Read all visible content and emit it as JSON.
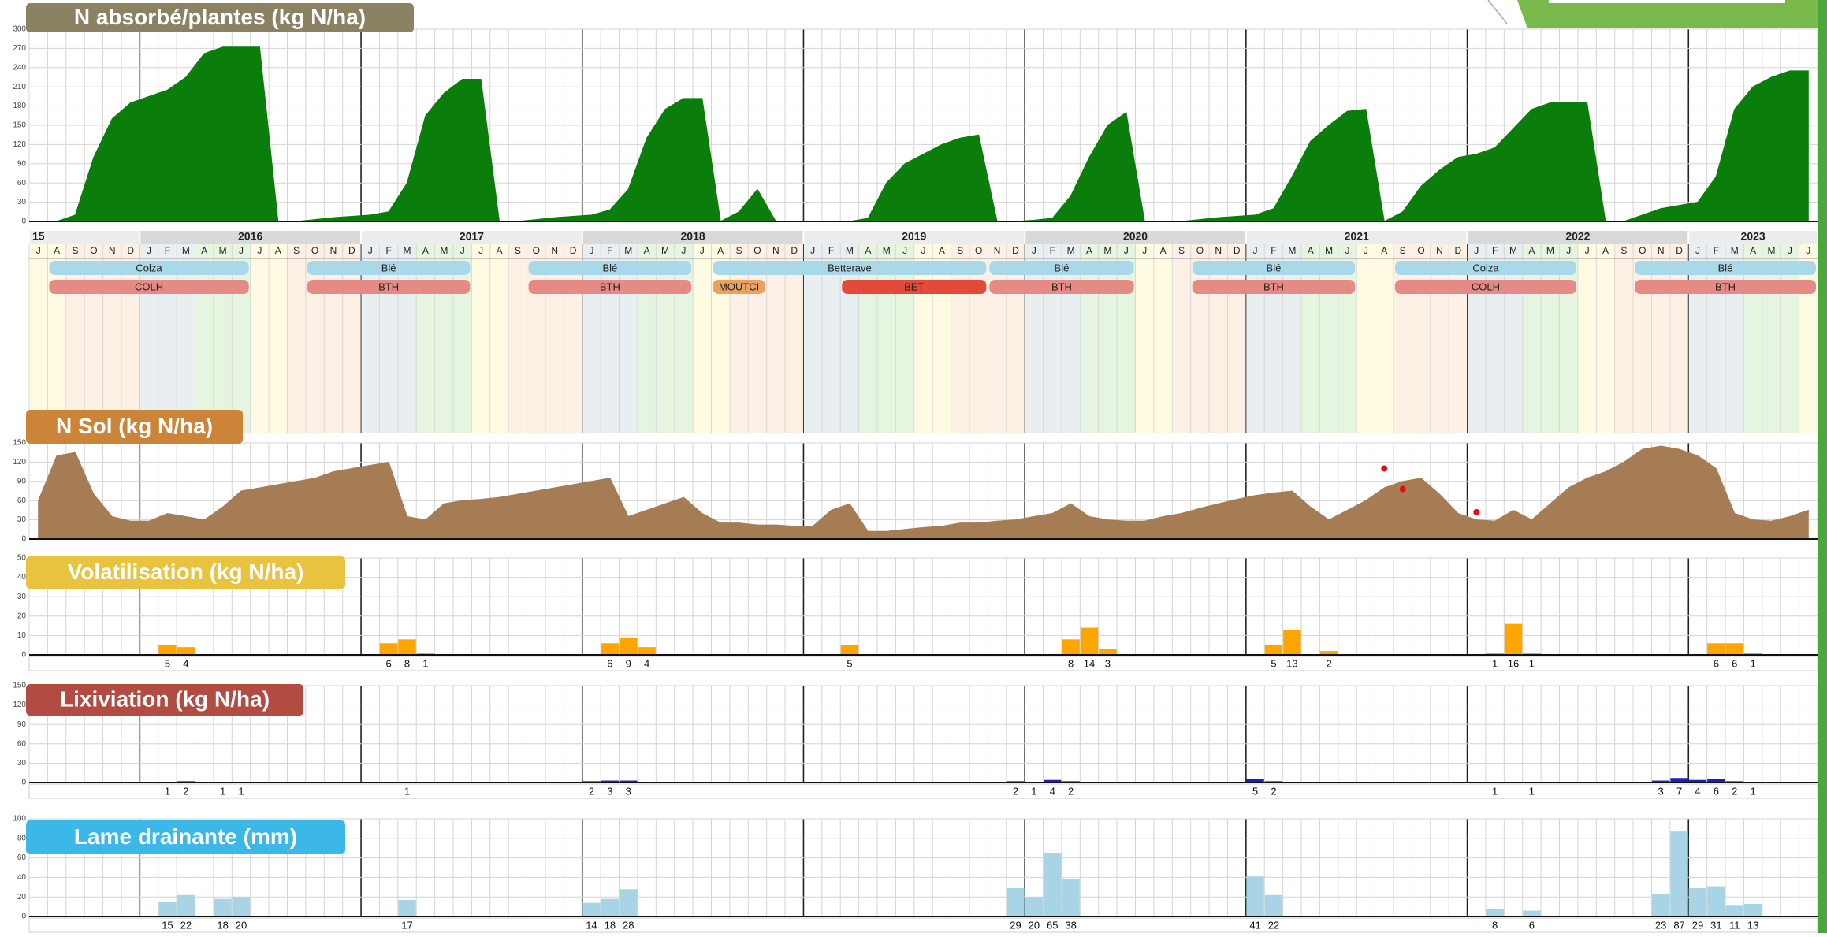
{
  "chart_data": [
    {
      "type": "area",
      "title": "N absorbé/plantes (kg N/ha)",
      "title_color": "#8a8262",
      "color": "#0a7d0a",
      "x": [
        "2015-07",
        "2015-08",
        "2015-09",
        "2015-10",
        "2015-11",
        "2015-12",
        "2016-01",
        "2016-02",
        "2016-03",
        "2016-04",
        "2016-05",
        "2016-06",
        "2016-07",
        "2016-08",
        "2016-09",
        "2016-10",
        "2016-11",
        "2016-12",
        "2017-01",
        "2017-02",
        "2017-03",
        "2017-04",
        "2017-05",
        "2017-06",
        "2017-07",
        "2017-08",
        "2017-09",
        "2017-10",
        "2017-11",
        "2017-12",
        "2018-01",
        "2018-02",
        "2018-03",
        "2018-04",
        "2018-05",
        "2018-06",
        "2018-07",
        "2018-08",
        "2018-09",
        "2018-10",
        "2018-11",
        "2018-12",
        "2019-01",
        "2019-02",
        "2019-03",
        "2019-04",
        "2019-05",
        "2019-06",
        "2019-07",
        "2019-08",
        "2019-09",
        "2019-10",
        "2019-11",
        "2019-12",
        "2020-01",
        "2020-02",
        "2020-03",
        "2020-04",
        "2020-05",
        "2020-06",
        "2020-07",
        "2020-08",
        "2020-09",
        "2020-10",
        "2020-11",
        "2020-12",
        "2021-01",
        "2021-02",
        "2021-03",
        "2021-04",
        "2021-05",
        "2021-06",
        "2021-07",
        "2021-08",
        "2021-09",
        "2021-10",
        "2021-11",
        "2021-12",
        "2022-01",
        "2022-02",
        "2022-03",
        "2022-04",
        "2022-05",
        "2022-06",
        "2022-07",
        "2022-08",
        "2022-09",
        "2022-10",
        "2022-11",
        "2022-12",
        "2023-01",
        "2023-02",
        "2023-03",
        "2023-04",
        "2023-05",
        "2023-06",
        "2023-07"
      ],
      "values": [
        0,
        0,
        10,
        100,
        160,
        185,
        195,
        205,
        225,
        262,
        272,
        272,
        272,
        0,
        0,
        3,
        6,
        8,
        10,
        15,
        60,
        165,
        200,
        222,
        222,
        0,
        0,
        3,
        6,
        8,
        10,
        18,
        50,
        130,
        175,
        192,
        192,
        0,
        15,
        50,
        0,
        0,
        0,
        0,
        0,
        5,
        60,
        90,
        105,
        120,
        130,
        135,
        0,
        0,
        2,
        5,
        40,
        100,
        150,
        170,
        0,
        0,
        0,
        3,
        6,
        8,
        10,
        20,
        70,
        125,
        150,
        172,
        175,
        0,
        15,
        55,
        80,
        100,
        105,
        115,
        145,
        175,
        185,
        185,
        185,
        0,
        0,
        10,
        20,
        25,
        30,
        70,
        175,
        210,
        225,
        235,
        235
      ],
      "ylim": [
        0,
        300
      ],
      "yticks": [
        0,
        30,
        60,
        90,
        120,
        150,
        180,
        210,
        240,
        270,
        300
      ],
      "grid": true
    },
    {
      "type": "timeline",
      "years": [
        "15",
        "2016",
        "2017",
        "2018",
        "2019",
        "2020",
        "2021",
        "2022",
        "2023"
      ],
      "months": [
        "J",
        "A",
        "S",
        "O",
        "N",
        "D",
        "J",
        "F",
        "M",
        "A",
        "M",
        "J",
        "J",
        "A",
        "S",
        "O",
        "N",
        "D",
        "J",
        "F",
        "M",
        "A",
        "M",
        "J",
        "J",
        "A",
        "S",
        "O",
        "N",
        "D",
        "J",
        "F",
        "M",
        "A",
        "M",
        "J",
        "J",
        "A",
        "S",
        "O",
        "N",
        "D",
        "J",
        "F",
        "M",
        "A",
        "M",
        "J",
        "J",
        "A",
        "S",
        "O",
        "N",
        "D",
        "J",
        "F",
        "M",
        "A",
        "M",
        "J",
        "J",
        "A",
        "S",
        "O",
        "N",
        "D",
        "J",
        "F",
        "M",
        "A",
        "M",
        "J",
        "J",
        "A",
        "S",
        "O",
        "N",
        "D",
        "J",
        "F",
        "M",
        "A",
        "M",
        "J",
        "J",
        "A",
        "S",
        "O",
        "N",
        "D",
        "J",
        "F",
        "M",
        "A",
        "M",
        "J",
        "J"
      ],
      "crops": [
        {
          "name": "Colza",
          "start": "2015-08",
          "end": "2016-06"
        },
        {
          "name": "Blé",
          "start": "2016-10",
          "end": "2017-06"
        },
        {
          "name": "Blé",
          "start": "2017-10",
          "end": "2018-06"
        },
        {
          "name": "Betterave",
          "start": "2018-08",
          "end": "2019-10"
        },
        {
          "name": "Blé",
          "start": "2019-11",
          "end": "2020-06"
        },
        {
          "name": "Blé",
          "start": "2020-10",
          "end": "2021-06"
        },
        {
          "name": "Colza",
          "start": "2021-09",
          "end": "2022-06"
        },
        {
          "name": "Blé",
          "start": "2022-10",
          "end": "2023-07"
        }
      ],
      "crop_color": "#a9d9e8",
      "codes": [
        {
          "name": "COLH",
          "start": "2015-08",
          "end": "2016-06",
          "color": "#e58a84"
        },
        {
          "name": "BTH",
          "start": "2016-10",
          "end": "2017-06",
          "color": "#e58a84"
        },
        {
          "name": "BTH",
          "start": "2017-10",
          "end": "2018-06",
          "color": "#e58a84"
        },
        {
          "name": "MOUTCI",
          "start": "2018-08",
          "end": "2018-10",
          "color": "#eaa260"
        },
        {
          "name": "BET",
          "start": "2019-03",
          "end": "2019-10",
          "color": "#e44a3a"
        },
        {
          "name": "BTH",
          "start": "2019-11",
          "end": "2020-06",
          "color": "#e58a84"
        },
        {
          "name": "BTH",
          "start": "2020-10",
          "end": "2021-06",
          "color": "#e58a84"
        },
        {
          "name": "COLH",
          "start": "2021-09",
          "end": "2022-06",
          "color": "#e58a84"
        },
        {
          "name": "BTH",
          "start": "2022-10",
          "end": "2023-07",
          "color": "#e58a84"
        }
      ]
    },
    {
      "type": "area",
      "title": "N Sol (kg N/ha)",
      "title_color": "#cc8538",
      "color": "#a67c55",
      "x": [
        "2015-07",
        "2015-08",
        "2015-09",
        "2015-10",
        "2015-11",
        "2015-12",
        "2016-01",
        "2016-02",
        "2016-03",
        "2016-04",
        "2016-05",
        "2016-06",
        "2016-07",
        "2016-08",
        "2016-09",
        "2016-10",
        "2016-11",
        "2016-12",
        "2017-01",
        "2017-02",
        "2017-03",
        "2017-04",
        "2017-05",
        "2017-06",
        "2017-07",
        "2017-08",
        "2017-09",
        "2017-10",
        "2017-11",
        "2017-12",
        "2018-01",
        "2018-02",
        "2018-03",
        "2018-04",
        "2018-05",
        "2018-06",
        "2018-07",
        "2018-08",
        "2018-09",
        "2018-10",
        "2018-11",
        "2018-12",
        "2019-01",
        "2019-02",
        "2019-03",
        "2019-04",
        "2019-05",
        "2019-06",
        "2019-07",
        "2019-08",
        "2019-09",
        "2019-10",
        "2019-11",
        "2019-12",
        "2020-01",
        "2020-02",
        "2020-03",
        "2020-04",
        "2020-05",
        "2020-06",
        "2020-07",
        "2020-08",
        "2020-09",
        "2020-10",
        "2020-11",
        "2020-12",
        "2021-01",
        "2021-02",
        "2021-03",
        "2021-04",
        "2021-05",
        "2021-06",
        "2021-07",
        "2021-08",
        "2021-09",
        "2021-10",
        "2021-11",
        "2021-12",
        "2022-01",
        "2022-02",
        "2022-03",
        "2022-04",
        "2022-05",
        "2022-06",
        "2022-07",
        "2022-08",
        "2022-09",
        "2022-10",
        "2022-11",
        "2022-12",
        "2023-01",
        "2023-02",
        "2023-03",
        "2023-04",
        "2023-05",
        "2023-06",
        "2023-07"
      ],
      "values": [
        60,
        130,
        135,
        70,
        35,
        28,
        28,
        40,
        35,
        30,
        50,
        75,
        80,
        85,
        90,
        95,
        105,
        110,
        115,
        120,
        35,
        30,
        55,
        60,
        62,
        65,
        70,
        75,
        80,
        85,
        90,
        95,
        35,
        45,
        55,
        65,
        40,
        25,
        25,
        22,
        22,
        20,
        20,
        45,
        55,
        12,
        12,
        15,
        18,
        20,
        25,
        25,
        28,
        30,
        35,
        40,
        55,
        35,
        30,
        28,
        28,
        35,
        40,
        48,
        55,
        62,
        68,
        72,
        75,
        50,
        30,
        45,
        60,
        80,
        90,
        95,
        70,
        40,
        30,
        28,
        45,
        30,
        55,
        80,
        95,
        105,
        120,
        140,
        145,
        140,
        130,
        110,
        40,
        30,
        28,
        35,
        45
      ],
      "observations": {
        "x": [
          "2021-08",
          "2021-09",
          "2022-01"
        ],
        "values": [
          110,
          78,
          42
        ],
        "color": "#e01010"
      },
      "ylim": [
        0,
        150
      ],
      "yticks": [
        0,
        30,
        60,
        90,
        120,
        150
      ],
      "grid": true
    },
    {
      "type": "bar",
      "title": "Volatilisation (kg N/ha)",
      "title_color": "#e8c340",
      "color": "#ffa500",
      "x": [
        "2016-02",
        "2016-03",
        "2017-02",
        "2017-03",
        "2017-04",
        "2018-02",
        "2018-03",
        "2018-04",
        "2019-03",
        "2020-03",
        "2020-04",
        "2020-05",
        "2021-02",
        "2021-03",
        "2021-05",
        "2022-02",
        "2022-03",
        "2022-04",
        "2023-02",
        "2023-03",
        "2023-04"
      ],
      "values": [
        5,
        4,
        6,
        8,
        1,
        6,
        9,
        4,
        5,
        8,
        14,
        3,
        5,
        13,
        2,
        1,
        16,
        1,
        6,
        6,
        1
      ],
      "ylim": [
        0,
        50
      ],
      "yticks": [
        0,
        10,
        20,
        30,
        40,
        50
      ],
      "grid": true
    },
    {
      "type": "bar",
      "title": "Lixiviation (kg N/ha)",
      "title_color": "#b24b42",
      "color": "#1f1fb4",
      "x": [
        "2016-02",
        "2016-03",
        "2016-05",
        "2016-06",
        "2017-03",
        "2018-01",
        "2018-02",
        "2018-03",
        "2019-12",
        "2020-01",
        "2020-02",
        "2020-03",
        "2021-01",
        "2021-02",
        "2022-02",
        "2022-04",
        "2022-11",
        "2022-12",
        "2023-01",
        "2023-02",
        "2023-03",
        "2023-04"
      ],
      "values": [
        1,
        2,
        1,
        1,
        1,
        2,
        3,
        3,
        2,
        1,
        4,
        2,
        5,
        2,
        1,
        1,
        3,
        7,
        4,
        6,
        2,
        1
      ],
      "ylim": [
        0,
        150
      ],
      "yticks": [
        0,
        30,
        60,
        90,
        120,
        150
      ],
      "grid": true
    },
    {
      "type": "bar",
      "title": "Lame drainante (mm)",
      "title_color": "#3bb8e8",
      "color": "#a8d4e6",
      "x": [
        "2016-02",
        "2016-03",
        "2016-05",
        "2016-06",
        "2017-03",
        "2018-01",
        "2018-02",
        "2018-03",
        "2019-12",
        "2020-01",
        "2020-02",
        "2020-03",
        "2021-01",
        "2021-02",
        "2022-02",
        "2022-04",
        "2022-11",
        "2022-12",
        "2023-01",
        "2023-02",
        "2023-03",
        "2023-04"
      ],
      "values": [
        15,
        22,
        18,
        20,
        17,
        14,
        18,
        28,
        29,
        20,
        65,
        38,
        41,
        22,
        8,
        6,
        23,
        87,
        29,
        31,
        11,
        13
      ],
      "ylim": [
        0,
        100
      ],
      "yticks": [
        0,
        20,
        40,
        60,
        80,
        100
      ],
      "grid": true
    }
  ]
}
